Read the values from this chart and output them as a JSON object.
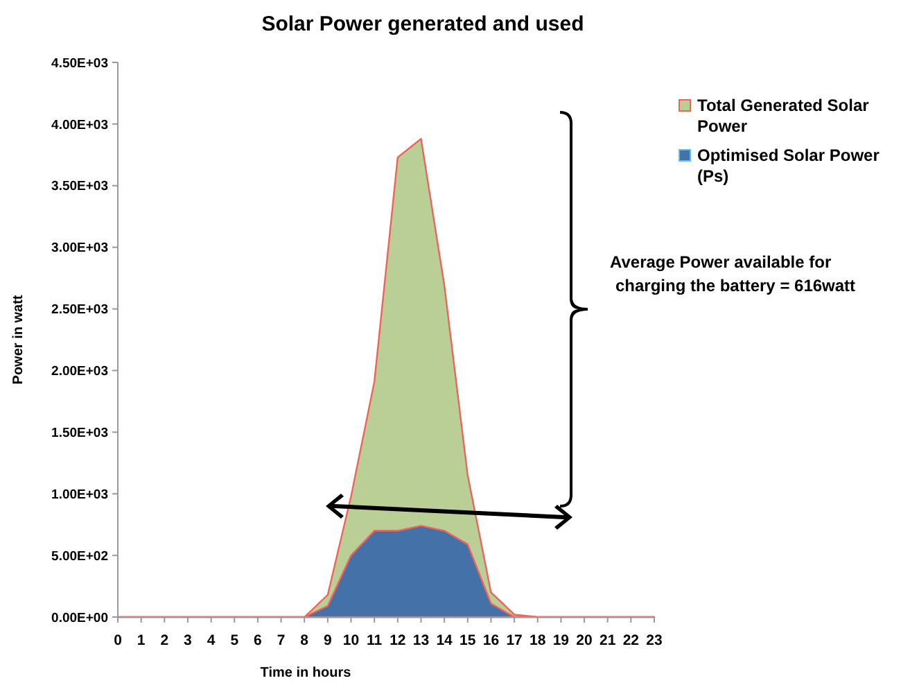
{
  "chart_data": {
    "type": "area",
    "title": "Solar Power generated and used",
    "xlabel": "Time in hours",
    "ylabel": "Power in watt",
    "x": [
      0,
      1,
      2,
      3,
      4,
      5,
      6,
      7,
      8,
      9,
      10,
      11,
      12,
      13,
      14,
      15,
      16,
      17,
      18,
      19,
      20,
      21,
      22,
      23
    ],
    "series": [
      {
        "name": "Total Generated Solar Power",
        "color": "#b9cf96",
        "values": [
          0,
          0,
          0,
          0,
          0,
          0,
          0,
          0,
          0,
          180,
          980,
          1910,
          3730,
          3880,
          2690,
          1150,
          200,
          20,
          0,
          0,
          0,
          0,
          0,
          0
        ]
      },
      {
        "name": "Optimised Solar Power (Ps)",
        "color": "#4472a8",
        "values": [
          0,
          0,
          0,
          0,
          0,
          0,
          0,
          0,
          0,
          90,
          500,
          700,
          700,
          740,
          700,
          590,
          110,
          0,
          0,
          0,
          0,
          0,
          0,
          0
        ]
      }
    ],
    "xlim": [
      0,
      23
    ],
    "xticks": [
      0,
      1,
      2,
      3,
      4,
      5,
      6,
      7,
      8,
      9,
      10,
      11,
      12,
      13,
      14,
      15,
      16,
      17,
      18,
      19,
      20,
      21,
      22,
      23
    ],
    "ylim": [
      0,
      4500
    ],
    "yticks": [
      {
        "value": 0,
        "label": "0.00E+00"
      },
      {
        "value": 500,
        "label": "5.00E+02"
      },
      {
        "value": 1000,
        "label": "1.00E+03"
      },
      {
        "value": 1500,
        "label": "1.50E+03"
      },
      {
        "value": 2000,
        "label": "2.00E+03"
      },
      {
        "value": 2500,
        "label": "2.50E+03"
      },
      {
        "value": 3000,
        "label": "3.00E+03"
      },
      {
        "value": 3500,
        "label": "3.50E+03"
      },
      {
        "value": 4000,
        "label": "4.00E+03"
      },
      {
        "value": 4500,
        "label": "4.50E+03"
      }
    ],
    "annotations": [
      "Average Power available for charging the battery = 616watt"
    ],
    "legend": "top right",
    "grid": false
  }
}
